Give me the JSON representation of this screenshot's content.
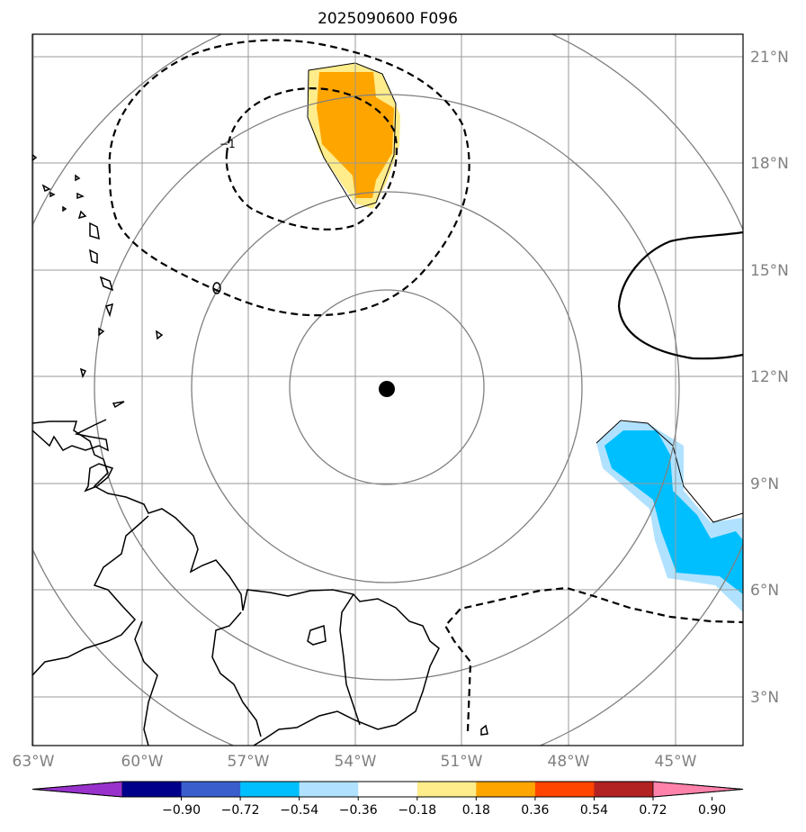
{
  "title": "2025090600 F096",
  "lat_labels": [
    "21°N",
    "18°N",
    "15°N",
    "12°N",
    "9°N",
    "6°N",
    "3°N"
  ],
  "lon_labels": [
    "63°W",
    "60°W",
    "57°W",
    "54°W",
    "51°W",
    "48°W",
    "45°W"
  ],
  "contour_labels": [
    "−1",
    "0"
  ],
  "colorbar": {
    "ticks": [
      "−0.90",
      "−0.72",
      "−0.54",
      "−0.36",
      "−0.18",
      "0.18",
      "0.36",
      "0.54",
      "0.72",
      "0.90"
    ],
    "colors": [
      "#9932CC",
      "#00008B",
      "#3A5FCD",
      "#00BFFF",
      "#B0E2FF",
      "#FFFFFF",
      "#FFEC8B",
      "#FFA500",
      "#FF4500",
      "#B22222",
      "#FF82AB"
    ]
  },
  "colors": {
    "grid": "#999999",
    "range_rings": "#808080",
    "coast": "#000000",
    "positive_fill": "#FFA500",
    "negative_fill": "#00BFFF"
  }
}
